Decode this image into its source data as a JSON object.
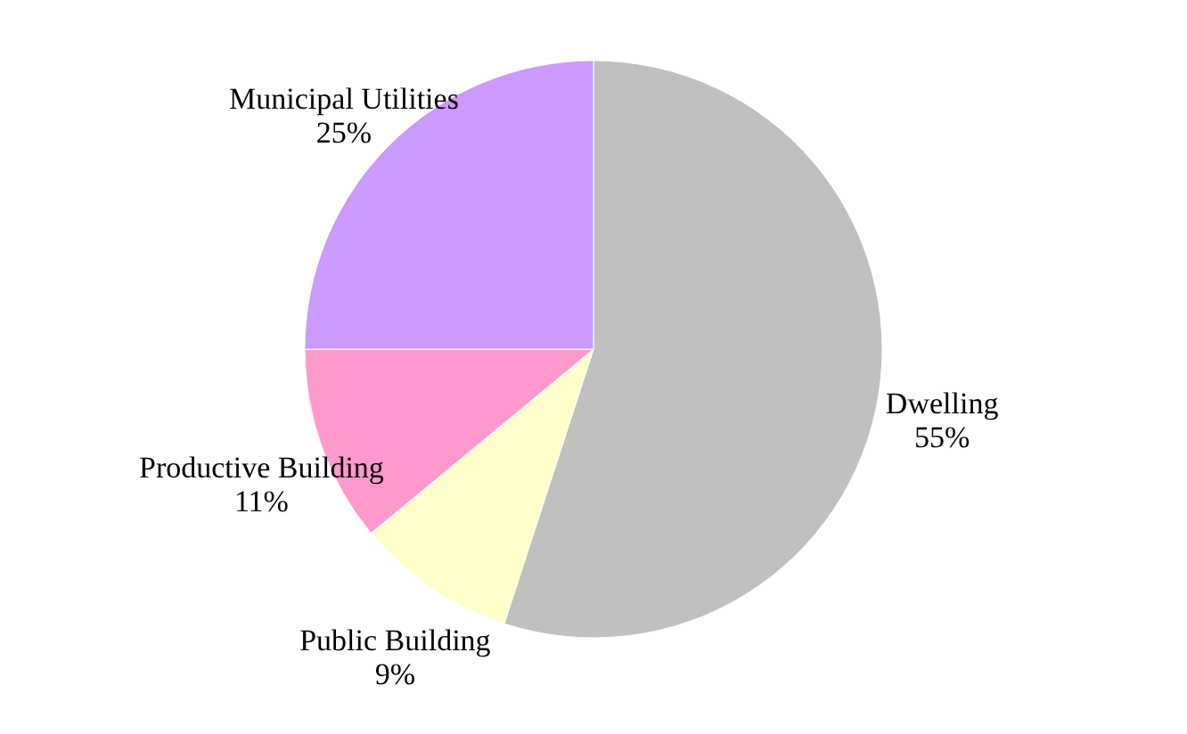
{
  "chart_data": {
    "type": "pie",
    "categories": [
      "Dwelling",
      "Public Building",
      "Productive Building",
      "Municipal Utilities"
    ],
    "values": [
      55,
      9,
      11,
      25
    ],
    "colors": [
      "#c0c0c0",
      "#ffffcc",
      "#ff99cc",
      "#cc99ff"
    ],
    "value_labels": [
      "55%",
      "9%",
      "11%",
      "25%"
    ],
    "legend": false
  }
}
